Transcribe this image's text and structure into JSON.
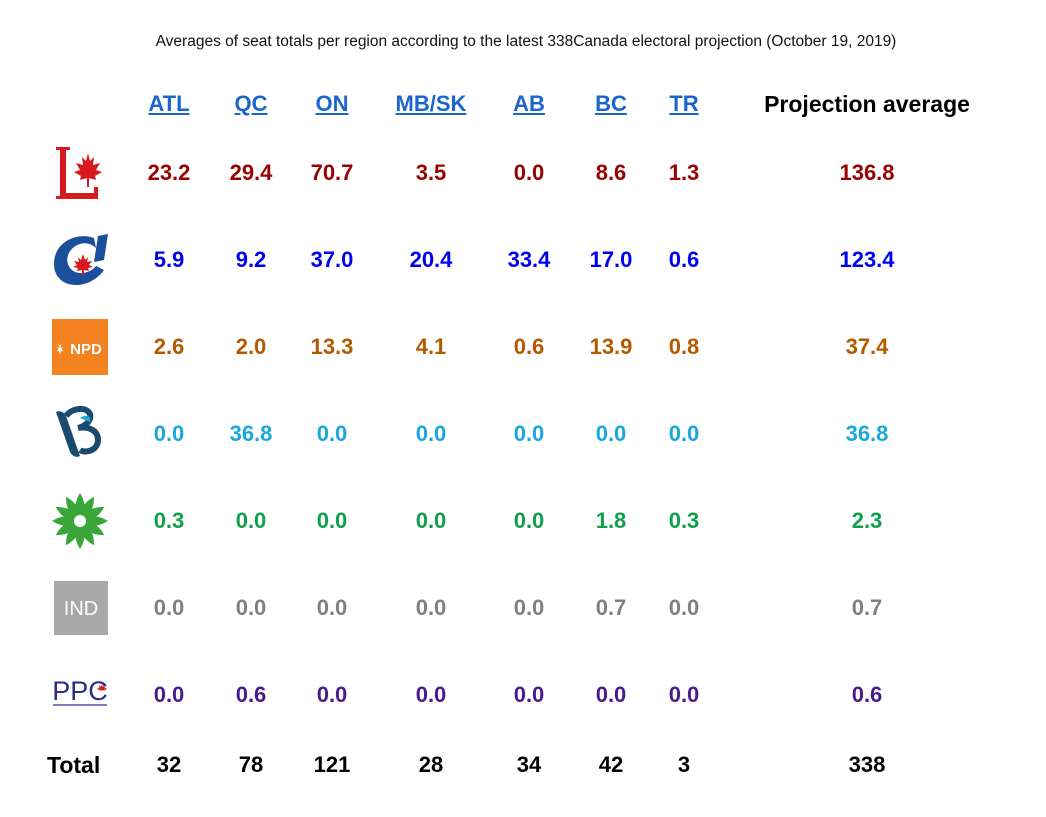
{
  "chart_data": {
    "type": "table",
    "title": "Averages of seat totals per region according to the latest 338Canada electoral projection (October 19, 2019)",
    "columns": [
      "ATL",
      "QC",
      "ON",
      "MB/SK",
      "AB",
      "BC",
      "TR"
    ],
    "average_header": "Projection average",
    "rows": [
      {
        "party": "Liberal",
        "logo": "liberal-logo",
        "color": "#990000",
        "values": [
          "23.2",
          "29.4",
          "70.7",
          "3.5",
          "0.0",
          "8.6",
          "1.3"
        ],
        "average": "136.8"
      },
      {
        "party": "Conservative",
        "logo": "conservative-logo",
        "color": "#0000ee",
        "values": [
          "5.9",
          "9.2",
          "37.0",
          "20.4",
          "33.4",
          "17.0",
          "0.6"
        ],
        "average": "123.4"
      },
      {
        "party": "NDP",
        "logo": "npd-logo",
        "logo_text": "NPD",
        "color": "#b35a00",
        "values": [
          "2.6",
          "2.0",
          "13.3",
          "4.1",
          "0.6",
          "13.9",
          "0.8"
        ],
        "average": "37.4"
      },
      {
        "party": "Bloc Québécois",
        "logo": "bloc-logo",
        "color": "#1aa7e0",
        "values": [
          "0.0",
          "36.8",
          "0.0",
          "0.0",
          "0.0",
          "0.0",
          "0.0"
        ],
        "average": "36.8"
      },
      {
        "party": "Green",
        "logo": "green-logo",
        "color": "#0fa14a",
        "values": [
          "0.3",
          "0.0",
          "0.0",
          "0.0",
          "0.0",
          "1.8",
          "0.3"
        ],
        "average": "2.3"
      },
      {
        "party": "Independent",
        "logo": "ind-logo",
        "logo_text": "IND",
        "color": "#808080",
        "values": [
          "0.0",
          "0.0",
          "0.0",
          "0.0",
          "0.0",
          "0.7",
          "0.0"
        ],
        "average": "0.7"
      },
      {
        "party": "PPC",
        "logo": "ppc-logo",
        "logo_text": "PPC",
        "color": "#4b1a8c",
        "values": [
          "0.0",
          "0.6",
          "0.0",
          "0.0",
          "0.0",
          "0.0",
          "0.0"
        ],
        "average": "0.6"
      }
    ],
    "total": {
      "label": "Total",
      "values": [
        "32",
        "78",
        "121",
        "28",
        "34",
        "42",
        "3"
      ],
      "average": "338"
    }
  }
}
